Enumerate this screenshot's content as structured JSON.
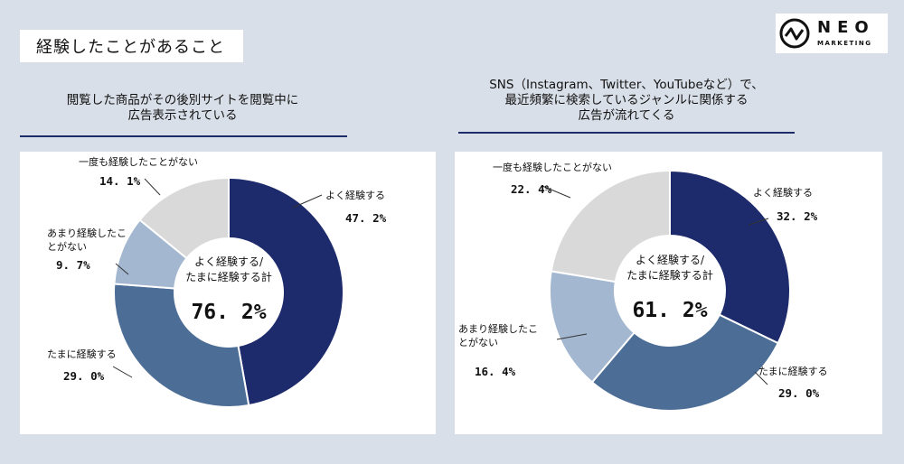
{
  "page_title": "経験したことがあること",
  "logo": {
    "name": "NEO",
    "subtext": "MARKETING"
  },
  "colors": {
    "dark": "#1d2a6b",
    "mid": "#4b6d96",
    "light": "#a3b7d0",
    "gray": "#d9d9d9",
    "leader": "#333333"
  },
  "chart_data": [
    {
      "type": "pie",
      "title_lines": [
        "閲覧した商品がその後別サイトを閲覧中に",
        "広告表示されている"
      ],
      "center_label_lines": [
        "よく経験する/",
        "たまに経験する計"
      ],
      "center_total": "76. 2%",
      "slices": [
        {
          "label_lines": [
            "よく経験する"
          ],
          "value": 47.2,
          "display": "47. 2%",
          "color": "#1d2a6b"
        },
        {
          "label_lines": [
            "たまに経験する"
          ],
          "value": 29.0,
          "display": "29. 0%",
          "color": "#4b6d96"
        },
        {
          "label_lines": [
            "あまり経験したこ",
            "とがない"
          ],
          "value": 9.7,
          "display": "9. 7%",
          "color": "#a3b7d0"
        },
        {
          "label_lines": [
            "一度も経験したことがない"
          ],
          "value": 14.1,
          "display": "14. 1%",
          "color": "#d9d9d9"
        }
      ]
    },
    {
      "type": "pie",
      "title_lines": [
        "SNS（Instagram、Twitter、YouTubeなど）で、",
        "最近頻繁に検索しているジャンルに関係する",
        "広告が流れてくる"
      ],
      "center_label_lines": [
        "よく経験する/",
        "たまに経験する計"
      ],
      "center_total": "61. 2%",
      "slices": [
        {
          "label_lines": [
            "よく経験する"
          ],
          "value": 32.2,
          "display": "32. 2%",
          "color": "#1d2a6b"
        },
        {
          "label_lines": [
            "たまに経験する"
          ],
          "value": 29.0,
          "display": "29. 0%",
          "color": "#4b6d96"
        },
        {
          "label_lines": [
            "あまり経験したこ",
            "とがない"
          ],
          "value": 16.4,
          "display": "16. 4%",
          "color": "#a3b7d0"
        },
        {
          "label_lines": [
            "一度も経験したことがない"
          ],
          "value": 22.4,
          "display": "22. 4%",
          "color": "#d9d9d9"
        }
      ]
    }
  ]
}
